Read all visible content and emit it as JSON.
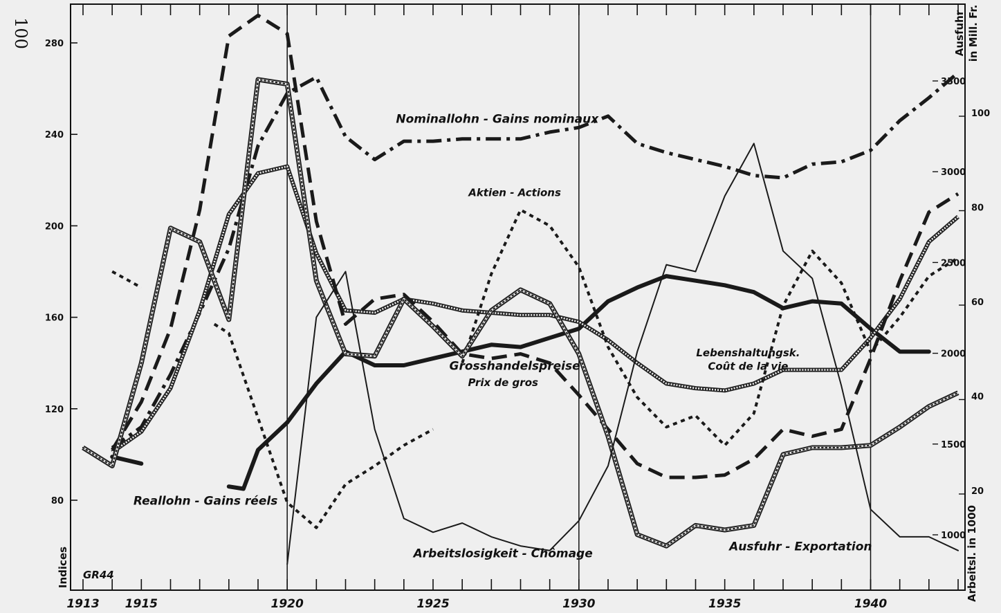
{
  "page_number": "100",
  "signature": "GR44",
  "chart_data": {
    "type": "line",
    "title": "",
    "xlabel": "",
    "x_range": [
      1913,
      1943
    ],
    "x_tick_years": [
      1913,
      1914,
      1915,
      1916,
      1917,
      1918,
      1919,
      1920,
      1921,
      1922,
      1923,
      1924,
      1925,
      1926,
      1927,
      1928,
      1929,
      1930,
      1931,
      1932,
      1933,
      1934,
      1935,
      1936,
      1937,
      1938,
      1939,
      1940,
      1941,
      1942,
      1943
    ],
    "x_tick_labels": [
      {
        "year": 1913,
        "label": "1913"
      },
      {
        "year": 1915,
        "label": "1915"
      },
      {
        "year": 1920,
        "label": "1920"
      },
      {
        "year": 1925,
        "label": "1925"
      },
      {
        "year": 1930,
        "label": "1930"
      },
      {
        "year": 1935,
        "label": "1935"
      },
      {
        "year": 1940,
        "label": "1940"
      }
    ],
    "vertical_gridlines": [
      1920,
      1930,
      1940
    ],
    "left_axis": {
      "title": "Indices",
      "ylim": [
        48,
        298
      ],
      "ticks": [
        80,
        120,
        160,
        200,
        240,
        280
      ],
      "tick_labels": [
        "80",
        "120",
        "160",
        "200",
        "240",
        "280"
      ]
    },
    "export_axis": {
      "title_line1": "Ausfuhr",
      "title_line2": "in Mill. Fr.",
      "ticks": [
        1000,
        1500,
        2000,
        2500,
        3000,
        3500
      ],
      "tick_labels": [
        "1000",
        "1500",
        "2000",
        "2500",
        "3000",
        "3500"
      ]
    },
    "unemployment_axis": {
      "title": "Arbeitsl. in 1000",
      "ticks": [
        20,
        40,
        60,
        80,
        100
      ],
      "tick_labels": [
        "20",
        "40",
        "60",
        "80",
        "100"
      ]
    },
    "series": [
      {
        "name": "Nominallohn - Gains nominaux",
        "style": "dashdot",
        "segments": [
          [
            [
              1914,
              103
            ],
            [
              1915,
              112
            ],
            [
              1916,
              135
            ],
            [
              1917,
              162
            ],
            [
              1918,
              190
            ],
            [
              1919,
              235
            ],
            [
              1920,
              258
            ],
            [
              1921,
              265
            ],
            [
              1922,
              239
            ],
            [
              1923,
              229
            ],
            [
              1924,
              237
            ],
            [
              1925,
              237
            ],
            [
              1926,
              238
            ],
            [
              1927,
              238
            ],
            [
              1928,
              238
            ],
            [
              1929,
              241
            ],
            [
              1930,
              243
            ],
            [
              1931,
              248
            ],
            [
              1932,
              236
            ],
            [
              1933,
              232
            ],
            [
              1934,
              229
            ],
            [
              1935,
              226
            ],
            [
              1936,
              222
            ],
            [
              1937,
              221
            ],
            [
              1938,
              227
            ],
            [
              1939,
              228
            ],
            [
              1940,
              233
            ],
            [
              1941,
              246
            ],
            [
              1942,
              256
            ],
            [
              1943,
              267
            ]
          ]
        ]
      },
      {
        "name": "Reallohn - Gains réels",
        "style": "thick",
        "segments": [
          [
            [
              1914,
              99
            ],
            [
              1915,
              96
            ]
          ],
          [
            [
              1918,
              86
            ],
            [
              1918.5,
              85
            ],
            [
              1919,
              102
            ],
            [
              1920,
              114
            ],
            [
              1921,
              131
            ],
            [
              1922,
              145
            ],
            [
              1923,
              139
            ],
            [
              1924,
              139
            ],
            [
              1925,
              142
            ],
            [
              1926,
              145
            ],
            [
              1927,
              148
            ],
            [
              1928,
              147
            ],
            [
              1929,
              151
            ],
            [
              1930,
              155
            ],
            [
              1931,
              167
            ],
            [
              1932,
              173
            ],
            [
              1933,
              178
            ],
            [
              1934,
              176
            ],
            [
              1935,
              174
            ],
            [
              1936,
              171
            ],
            [
              1937,
              164
            ],
            [
              1938,
              167
            ],
            [
              1939,
              166
            ],
            [
              1940,
              155
            ],
            [
              1941,
              145
            ],
            [
              1942,
              145
            ]
          ]
        ]
      },
      {
        "name": "Lebenshaltungsk. - Coût de la vie",
        "style": "double-dotted",
        "segments": [
          [
            [
              1914,
              101
            ],
            [
              1915,
              110
            ],
            [
              1916,
              129
            ],
            [
              1917,
              163
            ],
            [
              1918,
              205
            ],
            [
              1919,
              223
            ],
            [
              1920,
              226
            ],
            [
              1921,
              188
            ],
            [
              1922,
              163
            ],
            [
              1923,
              162
            ],
            [
              1924,
              168
            ],
            [
              1925,
              166
            ],
            [
              1926,
              163
            ],
            [
              1927,
              162
            ],
            [
              1928,
              161
            ],
            [
              1929,
              161
            ],
            [
              1930,
              158
            ],
            [
              1931,
              150
            ],
            [
              1932,
              140
            ],
            [
              1933,
              131
            ],
            [
              1934,
              129
            ],
            [
              1935,
              128
            ],
            [
              1936,
              131
            ],
            [
              1937,
              137
            ],
            [
              1938,
              137
            ],
            [
              1939,
              137
            ],
            [
              1940,
              151
            ],
            [
              1941,
              168
            ],
            [
              1942,
              193
            ],
            [
              1943,
              204
            ]
          ]
        ]
      },
      {
        "name": "Grosshandelspreise - Prix de gros",
        "style": "dashed",
        "segments": [
          [
            [
              1914,
              102
            ],
            [
              1915,
              123
            ],
            [
              1916,
              155
            ],
            [
              1917,
              207
            ],
            [
              1918,
              283
            ],
            [
              1919,
              292
            ],
            [
              1920,
              284
            ],
            [
              1921,
              202
            ],
            [
              1922,
              157
            ],
            [
              1923,
              168
            ],
            [
              1924,
              170
            ],
            [
              1925,
              158
            ],
            [
              1926,
              144
            ],
            [
              1927,
              142
            ],
            [
              1928,
              144
            ],
            [
              1929,
              140
            ],
            [
              1930,
              126
            ],
            [
              1931,
              111
            ],
            [
              1932,
              96
            ],
            [
              1933,
              90
            ],
            [
              1934,
              90
            ],
            [
              1935,
              91
            ],
            [
              1936,
              98
            ],
            [
              1937,
              111
            ],
            [
              1938,
              108
            ],
            [
              1939,
              111
            ],
            [
              1940,
              142
            ],
            [
              1941,
              176
            ],
            [
              1942,
              206
            ],
            [
              1943,
              214
            ]
          ]
        ]
      },
      {
        "name": "Aktien - Actions",
        "style": "dotted",
        "segments": [
          [
            [
              1914,
              180
            ],
            [
              1915,
              173
            ]
          ],
          [
            [
              1917.5,
              157
            ],
            [
              1918,
              153
            ],
            [
              1919,
              116
            ],
            [
              1920,
              79
            ],
            [
              1921,
              68
            ],
            [
              1922,
              87
            ],
            [
              1923,
              95
            ],
            [
              1924,
              104
            ],
            [
              1925,
              111
            ]
          ],
          [
            [
              1926,
              140
            ],
            [
              1927,
              179
            ],
            [
              1928,
              207
            ],
            [
              1929,
              200
            ],
            [
              1930,
              182
            ],
            [
              1931,
              147
            ],
            [
              1932,
              125
            ],
            [
              1933,
              112
            ],
            [
              1934,
              117
            ],
            [
              1935,
              104
            ],
            [
              1936,
              118
            ],
            [
              1937,
              165
            ],
            [
              1938,
              189
            ],
            [
              1939,
              175
            ],
            [
              1940,
              145
            ],
            [
              1941,
              160
            ],
            [
              1942,
              178
            ],
            [
              1943,
              186
            ]
          ]
        ]
      },
      {
        "name": "Ausfuhr - Exportation",
        "style": "outlined-dotted",
        "segments": [
          [
            [
              1913,
              103
            ],
            [
              1914,
              95
            ],
            [
              1915,
              140
            ],
            [
              1916,
              199
            ],
            [
              1917,
              193
            ],
            [
              1918,
              159
            ],
            [
              1919,
              264
            ],
            [
              1920,
              262
            ],
            [
              1921,
              176
            ],
            [
              1922,
              144
            ],
            [
              1923,
              143
            ],
            [
              1924,
              168
            ],
            [
              1925,
              156
            ],
            [
              1926,
              143
            ],
            [
              1927,
              163
            ],
            [
              1928,
              172
            ],
            [
              1929,
              166
            ],
            [
              1930,
              144
            ],
            [
              1931,
              108
            ],
            [
              1932,
              65
            ],
            [
              1933,
              60
            ],
            [
              1934,
              69
            ],
            [
              1935,
              67
            ],
            [
              1936,
              69
            ],
            [
              1937,
              100
            ],
            [
              1938,
              103
            ],
            [
              1939,
              103
            ],
            [
              1940,
              104
            ],
            [
              1941,
              112
            ],
            [
              1942,
              121
            ],
            [
              1943,
              127
            ]
          ]
        ]
      },
      {
        "name": "Arbeitslosigkeit - Chômage",
        "style": "thin",
        "segments": [
          [
            [
              1920,
              52
            ],
            [
              1921,
              160
            ],
            [
              1922,
              180
            ],
            [
              1923,
              111
            ],
            [
              1924,
              72
            ],
            [
              1925,
              66
            ],
            [
              1926,
              70
            ],
            [
              1927,
              64
            ],
            [
              1928,
              60
            ],
            [
              1929,
              58
            ],
            [
              1930,
              71
            ],
            [
              1931,
              95
            ],
            [
              1932,
              145
            ],
            [
              1933,
              183
            ],
            [
              1934,
              180
            ],
            [
              1935,
              213
            ],
            [
              1936,
              236
            ],
            [
              1937,
              189
            ],
            [
              1938,
              177
            ],
            [
              1939,
              130
            ],
            [
              1940,
              76
            ],
            [
              1941,
              64
            ],
            [
              1942,
              64
            ],
            [
              1943,
              58
            ]
          ]
        ]
      }
    ],
    "annotations": [
      {
        "text": "Nominallohn - Gains nominaux",
        "x": 1927.2,
        "y": 245
      },
      {
        "text": "Aktien - Actions",
        "x": 1927.8,
        "y": 213
      },
      {
        "text": "Lebenshaltungsk.",
        "x": 1935.8,
        "y": 143
      },
      {
        "text": "Coût de la vie",
        "x": 1935.8,
        "y": 137
      },
      {
        "text": "Grosshandelspreise",
        "x": 1927.8,
        "y": 137
      },
      {
        "text": "Prix de gros",
        "x": 1927.4,
        "y": 130
      },
      {
        "text": "Reallohn - Gains réels",
        "x": 1917.2,
        "y": 78
      },
      {
        "text": "Arbeitslosigkeit - Chômage",
        "x": 1927.4,
        "y": 55
      },
      {
        "text": "Ausfuhr - Exportation",
        "x": 1937.6,
        "y": 58
      }
    ]
  }
}
